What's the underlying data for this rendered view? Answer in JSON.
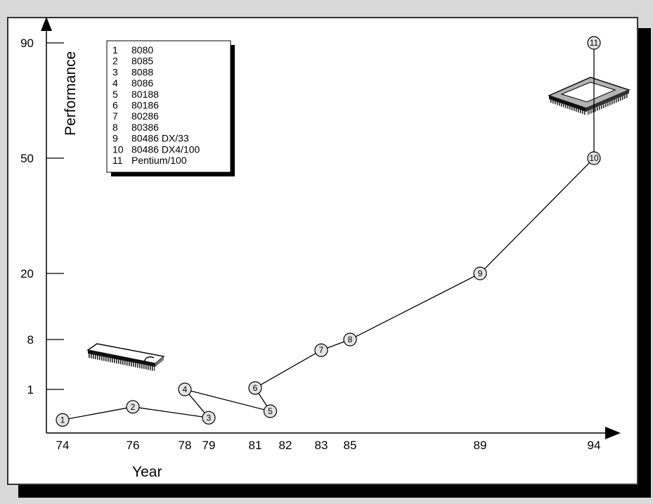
{
  "chart_data": {
    "type": "line",
    "xlabel": "Year",
    "ylabel": "Performance",
    "x_ticks": [
      "74",
      "76",
      "78",
      "79",
      "81",
      "82",
      "83",
      "85",
      "89",
      "94"
    ],
    "y_ticks": [
      "1",
      "8",
      "20",
      "50",
      "90"
    ],
    "series": [
      {
        "points": [
          {
            "label": "1",
            "x": "74",
            "y": 0.3
          },
          {
            "label": "2",
            "x": "76",
            "y": 0.6
          },
          {
            "label": "3",
            "x": "79",
            "y": 0.35
          },
          {
            "label": "4",
            "x": "78",
            "y": 1
          },
          {
            "label": "5",
            "x": "81.5",
            "y": 0.5
          },
          {
            "label": "6",
            "x": "81",
            "y": 1.2
          },
          {
            "label": "7",
            "x": "83",
            "y": 6.5
          },
          {
            "label": "8",
            "x": "85",
            "y": 8
          },
          {
            "label": "9",
            "x": "89",
            "y": 20
          },
          {
            "label": "10",
            "x": "94",
            "y": 50
          },
          {
            "label": "11",
            "x": "94",
            "y": 90
          }
        ]
      }
    ],
    "legend": {
      "placement": "top-left",
      "entries": [
        {
          "num": "1",
          "name": "8080"
        },
        {
          "num": "2",
          "name": "8085"
        },
        {
          "num": "3",
          "name": "8088"
        },
        {
          "num": "4",
          "name": "8086"
        },
        {
          "num": "5",
          "name": "80188"
        },
        {
          "num": "6",
          "name": "80186"
        },
        {
          "num": "7",
          "name": "80286"
        },
        {
          "num": "8",
          "name": "80386"
        },
        {
          "num": "9",
          "name": "80486 DX/33"
        },
        {
          "num": "10",
          "name": "80486 DX4/100"
        },
        {
          "num": "11",
          "name": "Pentium/100"
        }
      ]
    },
    "grid": false
  },
  "colors": {
    "marker_fill": "#e4e4e4",
    "line": "#000000",
    "frame_background": "#ffffff",
    "page_background": "#d9d9d9"
  },
  "icons": [
    "dip-chip-icon",
    "pga-chip-icon"
  ]
}
